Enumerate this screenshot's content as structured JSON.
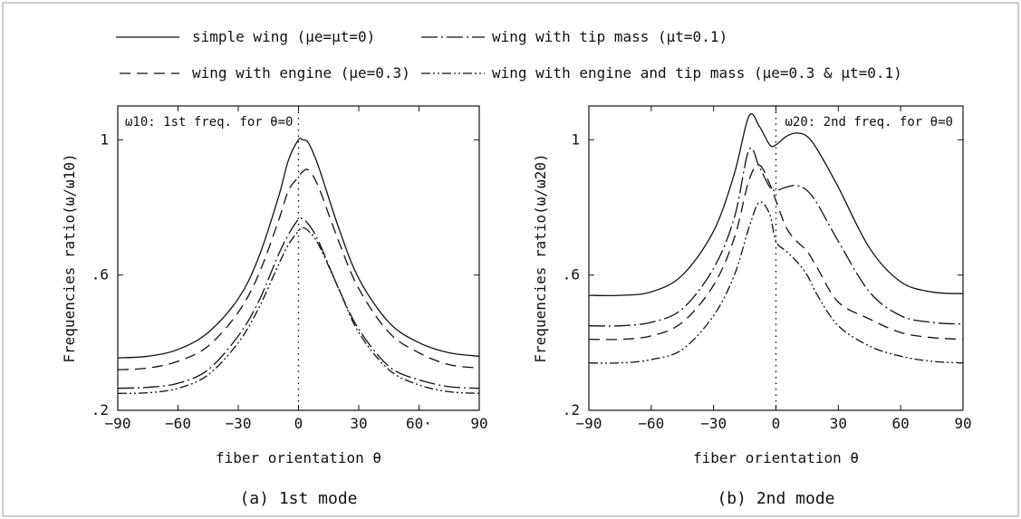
{
  "legend": {
    "items": [
      {
        "dash": "solid",
        "label": "simple wing (μe=μt=0)"
      },
      {
        "dash": "longdot",
        "label": "wing with tip mass (μt=0.1)"
      },
      {
        "dash": "dashed",
        "label": "wing with engine (μe=0.3)"
      },
      {
        "dash": "dashdotdot",
        "label": "wing with engine and tip mass (μe=0.3 & μt=0.1)"
      }
    ]
  },
  "chart_data": [
    {
      "type": "line",
      "caption": "(a) 1st mode",
      "xlabel": "fiber orientation θ",
      "ylabel": "Frequencies ratio(ω/ω10)",
      "annotation": "ω10: 1st freq. for θ=0",
      "xlim": [
        -90,
        90
      ],
      "ylim": [
        0.2,
        1.1
      ],
      "xticks": [
        -90,
        -60,
        -30,
        0,
        30,
        60,
        90
      ],
      "xtick_labels": [
        "−90",
        "−60",
        "−30",
        "0",
        "30",
        "60·",
        "90"
      ],
      "yticks": [
        0.2,
        0.6,
        1.0
      ],
      "ytick_labels": [
        ".2",
        ".6",
        "1"
      ],
      "x": [
        -90,
        -75,
        -60,
        -45,
        -30,
        -20,
        -10,
        -5,
        0,
        2,
        5,
        10,
        20,
        30,
        45,
        60,
        75,
        90
      ],
      "series": [
        {
          "name": "simple wing (μe=μt=0)",
          "dash": "solid",
          "values": [
            0.355,
            0.36,
            0.38,
            0.43,
            0.53,
            0.65,
            0.83,
            0.94,
            1.0,
            1.0,
            0.99,
            0.92,
            0.74,
            0.59,
            0.46,
            0.4,
            0.37,
            0.36
          ]
        },
        {
          "name": "wing with engine (μe=0.3)",
          "dash": "dashed",
          "values": [
            0.32,
            0.325,
            0.345,
            0.39,
            0.49,
            0.6,
            0.76,
            0.85,
            0.89,
            0.905,
            0.91,
            0.86,
            0.7,
            0.56,
            0.43,
            0.37,
            0.335,
            0.325
          ]
        },
        {
          "name": "wing with tip mass (μt=0.1)",
          "dash": "longdot",
          "values": [
            0.265,
            0.268,
            0.28,
            0.32,
            0.42,
            0.52,
            0.66,
            0.72,
            0.765,
            0.765,
            0.75,
            0.7,
            0.56,
            0.44,
            0.33,
            0.29,
            0.27,
            0.265
          ]
        },
        {
          "name": "wing with engine and tip mass (μe=0.3 & μt=0.1)",
          "dash": "dashdotdot",
          "values": [
            0.25,
            0.252,
            0.265,
            0.305,
            0.4,
            0.5,
            0.63,
            0.69,
            0.73,
            0.74,
            0.73,
            0.69,
            0.56,
            0.43,
            0.32,
            0.275,
            0.255,
            0.25
          ]
        }
      ]
    },
    {
      "type": "line",
      "caption": "(b) 2nd mode",
      "xlabel": "fiber orientation θ",
      "ylabel": "Frequencies ratio(ω/ω20)",
      "annotation": "ω20: 2nd freq. for θ=0",
      "xlim": [
        -90,
        90
      ],
      "ylim": [
        0.2,
        1.1
      ],
      "xticks": [
        -90,
        -60,
        -30,
        0,
        30,
        60,
        90
      ],
      "xtick_labels": [
        "−90",
        "−60",
        "−30",
        "0",
        "30",
        "60",
        "90"
      ],
      "yticks": [
        0.2,
        0.6,
        1.0
      ],
      "ytick_labels": [
        ".2",
        ".6",
        "1"
      ],
      "x": [
        -90,
        -75,
        -60,
        -45,
        -30,
        -20,
        -13,
        -8,
        -3,
        0,
        5,
        10,
        15,
        20,
        30,
        45,
        60,
        75,
        90
      ],
      "series": [
        {
          "name": "simple wing (μe=μt=0)",
          "dash": "solid",
          "values": [
            0.54,
            0.54,
            0.55,
            0.6,
            0.73,
            0.9,
            1.07,
            1.04,
            0.985,
            0.985,
            1.01,
            1.02,
            1.01,
            0.97,
            0.86,
            0.68,
            0.58,
            0.55,
            0.545
          ]
        },
        {
          "name": "wing with tip mass (μt=0.1)",
          "dash": "longdot",
          "values": [
            0.45,
            0.45,
            0.46,
            0.5,
            0.62,
            0.77,
            0.97,
            0.92,
            0.86,
            0.85,
            0.86,
            0.865,
            0.85,
            0.81,
            0.7,
            0.55,
            0.48,
            0.46,
            0.455
          ]
        },
        {
          "name": "wing with engine (μe=0.3)",
          "dash": "dashed",
          "values": [
            0.41,
            0.41,
            0.42,
            0.46,
            0.57,
            0.71,
            0.88,
            0.925,
            0.87,
            0.82,
            0.74,
            0.7,
            0.67,
            0.62,
            0.52,
            0.47,
            0.43,
            0.415,
            0.41
          ]
        },
        {
          "name": "wing with engine and tip mass (μe=0.3 & μt=0.1)",
          "dash": "dashdotdot",
          "values": [
            0.34,
            0.34,
            0.35,
            0.38,
            0.48,
            0.6,
            0.74,
            0.815,
            0.78,
            0.7,
            0.67,
            0.64,
            0.6,
            0.54,
            0.45,
            0.39,
            0.36,
            0.345,
            0.34
          ]
        }
      ]
    }
  ]
}
